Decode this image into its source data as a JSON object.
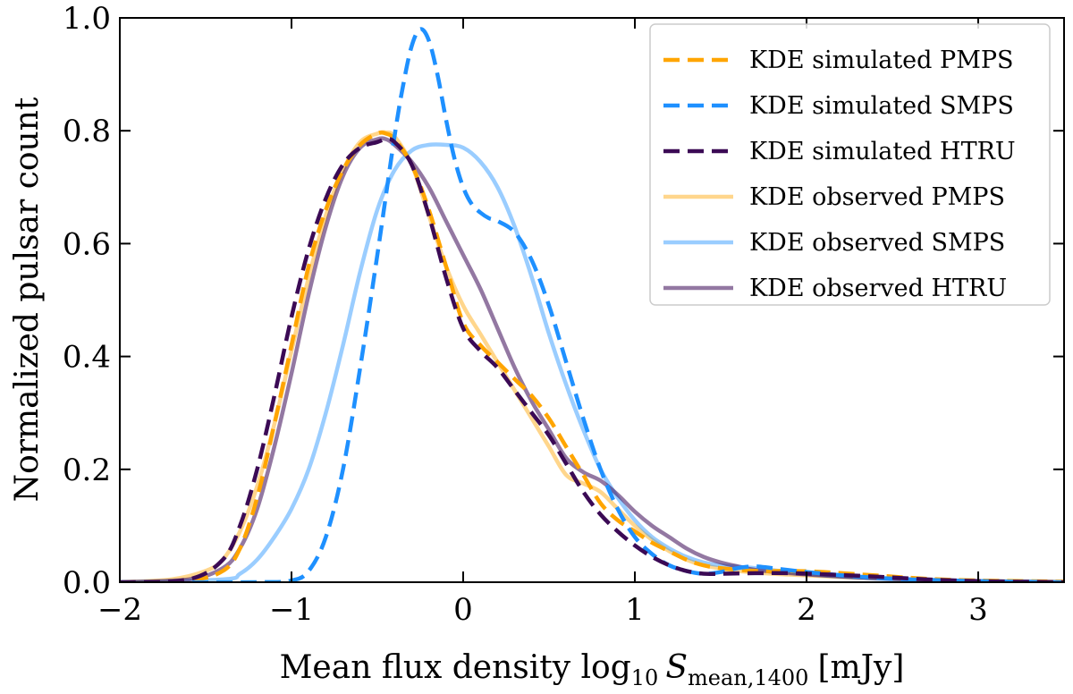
{
  "chart_data": {
    "type": "line",
    "xlabel": {
      "main": "Mean flux density log",
      "sub": "10",
      "var": "S",
      "var_sub": "mean,1400",
      "unit": "[mJy]"
    },
    "ylabel": "Normalized pulsar count",
    "xlim": [
      -2,
      3.5
    ],
    "ylim": [
      0,
      1.0
    ],
    "xticks": [
      -2,
      -1,
      0,
      1,
      2,
      3
    ],
    "xtick_labels": [
      "−2",
      "−1",
      "0",
      "1",
      "2",
      "3"
    ],
    "yticks": [
      0.0,
      0.2,
      0.4,
      0.6,
      0.8,
      1.0
    ],
    "ytick_labels": [
      "0.0",
      "0.2",
      "0.4",
      "0.6",
      "0.8",
      "1.0"
    ],
    "legend_position": "top-right",
    "series": [
      {
        "name": "KDE simulated PMPS",
        "color": "#FFA500",
        "style": "dashed",
        "alpha": 1.0,
        "points": [
          [
            -2.0,
            0.0
          ],
          [
            -1.6,
            0.003
          ],
          [
            -1.4,
            0.02
          ],
          [
            -1.3,
            0.06
          ],
          [
            -1.2,
            0.15
          ],
          [
            -1.1,
            0.28
          ],
          [
            -1.0,
            0.42
          ],
          [
            -0.9,
            0.56
          ],
          [
            -0.8,
            0.66
          ],
          [
            -0.7,
            0.73
          ],
          [
            -0.6,
            0.775
          ],
          [
            -0.5,
            0.795
          ],
          [
            -0.45,
            0.795
          ],
          [
            -0.4,
            0.785
          ],
          [
            -0.3,
            0.74
          ],
          [
            -0.2,
            0.66
          ],
          [
            -0.1,
            0.56
          ],
          [
            0.0,
            0.46
          ],
          [
            0.1,
            0.42
          ],
          [
            0.2,
            0.39
          ],
          [
            0.3,
            0.36
          ],
          [
            0.4,
            0.33
          ],
          [
            0.5,
            0.29
          ],
          [
            0.6,
            0.24
          ],
          [
            0.7,
            0.19
          ],
          [
            0.8,
            0.14
          ],
          [
            0.9,
            0.11
          ],
          [
            1.0,
            0.09
          ],
          [
            1.1,
            0.07
          ],
          [
            1.2,
            0.055
          ],
          [
            1.3,
            0.04
          ],
          [
            1.4,
            0.03
          ],
          [
            1.5,
            0.025
          ],
          [
            1.7,
            0.02
          ],
          [
            1.9,
            0.02
          ],
          [
            2.1,
            0.018
          ],
          [
            2.4,
            0.012
          ],
          [
            2.7,
            0.006
          ],
          [
            3.0,
            0.003
          ],
          [
            3.5,
            0.001
          ]
        ]
      },
      {
        "name": "KDE simulated SMPS",
        "color": "#1E90FF",
        "style": "dashed",
        "alpha": 1.0,
        "points": [
          [
            -2.0,
            0.0
          ],
          [
            -1.2,
            0.0
          ],
          [
            -1.0,
            0.003
          ],
          [
            -0.9,
            0.02
          ],
          [
            -0.8,
            0.08
          ],
          [
            -0.7,
            0.2
          ],
          [
            -0.6,
            0.38
          ],
          [
            -0.5,
            0.58
          ],
          [
            -0.4,
            0.79
          ],
          [
            -0.35,
            0.88
          ],
          [
            -0.3,
            0.95
          ],
          [
            -0.25,
            0.98
          ],
          [
            -0.2,
            0.96
          ],
          [
            -0.15,
            0.9
          ],
          [
            -0.1,
            0.82
          ],
          [
            -0.05,
            0.75
          ],
          [
            0.0,
            0.7
          ],
          [
            0.05,
            0.67
          ],
          [
            0.1,
            0.655
          ],
          [
            0.15,
            0.645
          ],
          [
            0.2,
            0.64
          ],
          [
            0.3,
            0.62
          ],
          [
            0.4,
            0.57
          ],
          [
            0.5,
            0.49
          ],
          [
            0.6,
            0.39
          ],
          [
            0.7,
            0.29
          ],
          [
            0.8,
            0.2
          ],
          [
            0.9,
            0.13
          ],
          [
            1.0,
            0.08
          ],
          [
            1.1,
            0.05
          ],
          [
            1.2,
            0.03
          ],
          [
            1.3,
            0.02
          ],
          [
            1.4,
            0.015
          ],
          [
            1.5,
            0.018
          ],
          [
            1.6,
            0.025
          ],
          [
            1.7,
            0.028
          ],
          [
            1.8,
            0.025
          ],
          [
            2.0,
            0.018
          ],
          [
            2.3,
            0.01
          ],
          [
            2.6,
            0.005
          ],
          [
            3.0,
            0.002
          ],
          [
            3.5,
            0.0
          ]
        ]
      },
      {
        "name": "KDE simulated HTRU",
        "color": "#3B0A55",
        "style": "dashed",
        "alpha": 1.0,
        "points": [
          [
            -2.0,
            0.0
          ],
          [
            -1.6,
            0.005
          ],
          [
            -1.4,
            0.04
          ],
          [
            -1.3,
            0.1
          ],
          [
            -1.2,
            0.2
          ],
          [
            -1.1,
            0.33
          ],
          [
            -1.0,
            0.47
          ],
          [
            -0.9,
            0.59
          ],
          [
            -0.8,
            0.68
          ],
          [
            -0.7,
            0.74
          ],
          [
            -0.6,
            0.77
          ],
          [
            -0.5,
            0.78
          ],
          [
            -0.45,
            0.785
          ],
          [
            -0.4,
            0.78
          ],
          [
            -0.3,
            0.74
          ],
          [
            -0.2,
            0.65
          ],
          [
            -0.1,
            0.54
          ],
          [
            0.0,
            0.45
          ],
          [
            0.1,
            0.41
          ],
          [
            0.2,
            0.38
          ],
          [
            0.3,
            0.34
          ],
          [
            0.4,
            0.3
          ],
          [
            0.5,
            0.26
          ],
          [
            0.6,
            0.21
          ],
          [
            0.7,
            0.16
          ],
          [
            0.8,
            0.12
          ],
          [
            0.9,
            0.09
          ],
          [
            1.0,
            0.065
          ],
          [
            1.1,
            0.045
          ],
          [
            1.2,
            0.03
          ],
          [
            1.3,
            0.02
          ],
          [
            1.4,
            0.015
          ],
          [
            1.5,
            0.015
          ],
          [
            1.7,
            0.016
          ],
          [
            1.9,
            0.016
          ],
          [
            2.1,
            0.014
          ],
          [
            2.4,
            0.01
          ],
          [
            2.7,
            0.005
          ],
          [
            3.0,
            0.002
          ],
          [
            3.5,
            0.0
          ]
        ]
      },
      {
        "name": "KDE observed PMPS",
        "color": "#FFA500",
        "style": "solid",
        "alpha": 0.45,
        "points": [
          [
            -2.0,
            0.0
          ],
          [
            -1.7,
            0.005
          ],
          [
            -1.5,
            0.02
          ],
          [
            -1.4,
            0.04
          ],
          [
            -1.3,
            0.09
          ],
          [
            -1.2,
            0.17
          ],
          [
            -1.1,
            0.28
          ],
          [
            -1.0,
            0.41
          ],
          [
            -0.9,
            0.54
          ],
          [
            -0.8,
            0.65
          ],
          [
            -0.7,
            0.73
          ],
          [
            -0.6,
            0.78
          ],
          [
            -0.5,
            0.795
          ],
          [
            -0.45,
            0.797
          ],
          [
            -0.4,
            0.79
          ],
          [
            -0.3,
            0.74
          ],
          [
            -0.2,
            0.65
          ],
          [
            -0.1,
            0.56
          ],
          [
            0.0,
            0.49
          ],
          [
            0.1,
            0.44
          ],
          [
            0.2,
            0.39
          ],
          [
            0.3,
            0.34
          ],
          [
            0.4,
            0.29
          ],
          [
            0.5,
            0.24
          ],
          [
            0.6,
            0.19
          ],
          [
            0.7,
            0.175
          ],
          [
            0.8,
            0.16
          ],
          [
            0.9,
            0.13
          ],
          [
            1.0,
            0.1
          ],
          [
            1.1,
            0.075
          ],
          [
            1.2,
            0.055
          ],
          [
            1.3,
            0.04
          ],
          [
            1.4,
            0.03
          ],
          [
            1.6,
            0.02
          ],
          [
            1.8,
            0.015
          ],
          [
            2.0,
            0.012
          ],
          [
            2.3,
            0.008
          ],
          [
            2.6,
            0.005
          ],
          [
            3.0,
            0.002
          ],
          [
            3.5,
            0.001
          ]
        ]
      },
      {
        "name": "KDE observed SMPS",
        "color": "#1E90FF",
        "style": "solid",
        "alpha": 0.45,
        "points": [
          [
            -2.0,
            0.0
          ],
          [
            -1.4,
            0.005
          ],
          [
            -1.3,
            0.015
          ],
          [
            -1.2,
            0.04
          ],
          [
            -1.1,
            0.08
          ],
          [
            -1.0,
            0.13
          ],
          [
            -0.9,
            0.2
          ],
          [
            -0.8,
            0.3
          ],
          [
            -0.7,
            0.42
          ],
          [
            -0.6,
            0.55
          ],
          [
            -0.5,
            0.66
          ],
          [
            -0.4,
            0.73
          ],
          [
            -0.3,
            0.765
          ],
          [
            -0.2,
            0.775
          ],
          [
            -0.1,
            0.775
          ],
          [
            0.0,
            0.77
          ],
          [
            0.1,
            0.745
          ],
          [
            0.2,
            0.7
          ],
          [
            0.3,
            0.63
          ],
          [
            0.4,
            0.54
          ],
          [
            0.5,
            0.44
          ],
          [
            0.6,
            0.35
          ],
          [
            0.7,
            0.27
          ],
          [
            0.8,
            0.2
          ],
          [
            0.9,
            0.15
          ],
          [
            1.0,
            0.11
          ],
          [
            1.1,
            0.08
          ],
          [
            1.2,
            0.06
          ],
          [
            1.3,
            0.045
          ],
          [
            1.4,
            0.035
          ],
          [
            1.5,
            0.03
          ],
          [
            1.7,
            0.025
          ],
          [
            1.9,
            0.018
          ],
          [
            2.2,
            0.01
          ],
          [
            2.5,
            0.005
          ],
          [
            3.0,
            0.002
          ],
          [
            3.5,
            0.0
          ]
        ]
      },
      {
        "name": "KDE observed HTRU",
        "color": "#3B0A55",
        "style": "solid",
        "alpha": 0.55,
        "points": [
          [
            -2.0,
            0.0
          ],
          [
            -1.6,
            0.005
          ],
          [
            -1.4,
            0.025
          ],
          [
            -1.3,
            0.06
          ],
          [
            -1.2,
            0.13
          ],
          [
            -1.1,
            0.24
          ],
          [
            -1.0,
            0.37
          ],
          [
            -0.9,
            0.51
          ],
          [
            -0.8,
            0.63
          ],
          [
            -0.7,
            0.72
          ],
          [
            -0.6,
            0.77
          ],
          [
            -0.5,
            0.785
          ],
          [
            -0.45,
            0.785
          ],
          [
            -0.4,
            0.775
          ],
          [
            -0.3,
            0.745
          ],
          [
            -0.2,
            0.7
          ],
          [
            -0.1,
            0.64
          ],
          [
            0.0,
            0.58
          ],
          [
            0.1,
            0.52
          ],
          [
            0.2,
            0.45
          ],
          [
            0.3,
            0.38
          ],
          [
            0.4,
            0.32
          ],
          [
            0.5,
            0.27
          ],
          [
            0.6,
            0.22
          ],
          [
            0.7,
            0.195
          ],
          [
            0.8,
            0.18
          ],
          [
            0.9,
            0.155
          ],
          [
            1.0,
            0.125
          ],
          [
            1.1,
            0.1
          ],
          [
            1.2,
            0.08
          ],
          [
            1.3,
            0.06
          ],
          [
            1.4,
            0.045
          ],
          [
            1.5,
            0.035
          ],
          [
            1.6,
            0.028
          ],
          [
            1.7,
            0.022
          ],
          [
            1.9,
            0.016
          ],
          [
            2.2,
            0.01
          ],
          [
            2.5,
            0.006
          ],
          [
            3.0,
            0.002
          ],
          [
            3.5,
            0.0
          ]
        ]
      }
    ]
  }
}
